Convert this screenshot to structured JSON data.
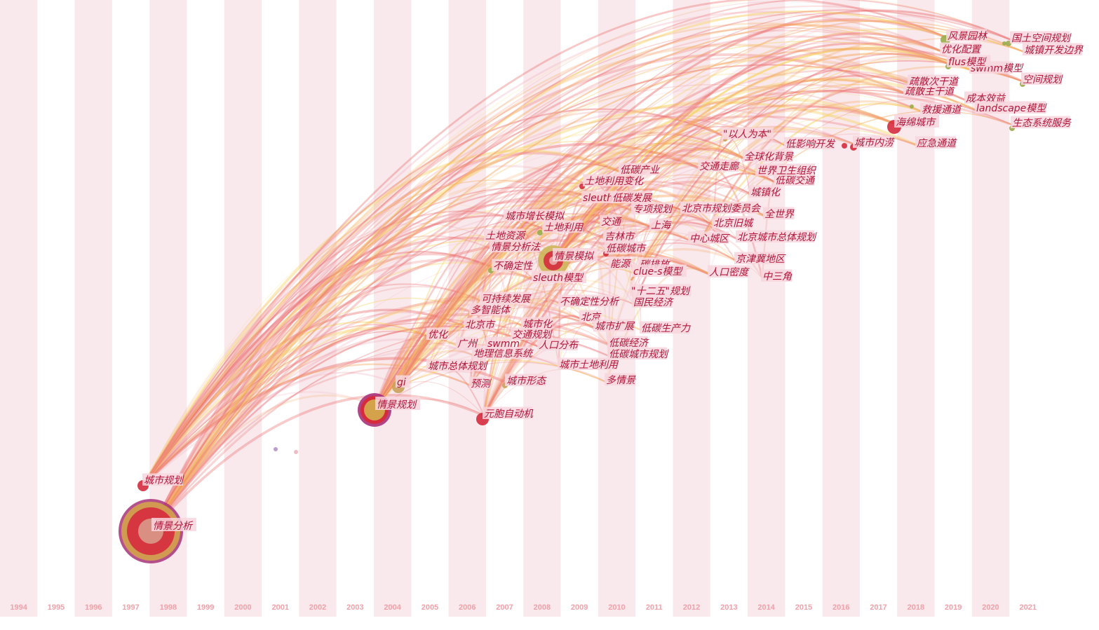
{
  "timeline": {
    "years": [
      "1994",
      "1995",
      "1996",
      "1997",
      "1998",
      "1999",
      "2000",
      "2001",
      "2002",
      "2003",
      "2004",
      "2005",
      "2006",
      "2007",
      "2008",
      "2009",
      "2010",
      "2011",
      "2012",
      "2013",
      "2014",
      "2015",
      "2016",
      "2017",
      "2018",
      "2019",
      "2020",
      "2021"
    ]
  },
  "colors": {
    "band": "#f7e1e6",
    "link_red": "#ec6d6d",
    "link_orange": "#f5a55a",
    "link_yellow": "#f7d15c",
    "link_pink": "#f1b3c0",
    "link_purple": "#b592c9",
    "label_bg": "#f8d6de",
    "label_text": "#b0163a",
    "node_red": "#d52b3d",
    "node_tan": "#c9a15a",
    "node_olive": "#9aac4c",
    "node_ring": "#a8327a"
  },
  "keywords": [
    {
      "id": "k1",
      "label": "情景分析",
      "year": 1998
    },
    {
      "id": "k2",
      "label": "城市规划",
      "year": 1998
    },
    {
      "id": "k3",
      "label": "情景规划",
      "year": 2004
    },
    {
      "id": "k4",
      "label": "gi",
      "year": 2004
    },
    {
      "id": "k5",
      "label": "元胞自动机",
      "year": 2007
    },
    {
      "id": "k6",
      "label": "情景模拟",
      "year": 2009
    },
    {
      "id": "k7",
      "label": "城市形态",
      "year": 2007
    },
    {
      "id": "k8",
      "label": "预测",
      "year": 2007
    },
    {
      "id": "k9",
      "label": "城市总体规划",
      "year": 2006
    },
    {
      "id": "k10",
      "label": "地理信息系统",
      "year": 2007
    },
    {
      "id": "k11",
      "label": "广州",
      "year": 2006
    },
    {
      "id": "k12",
      "label": "swmm",
      "year": 2007
    },
    {
      "id": "k13",
      "label": "人口分布",
      "year": 2008
    },
    {
      "id": "k14",
      "label": "交通规划",
      "year": 2007
    },
    {
      "id": "k15",
      "label": "城市化",
      "year": 2008
    },
    {
      "id": "k16",
      "label": "北京市",
      "year": 2006
    },
    {
      "id": "k17",
      "label": "优化",
      "year": 2005
    },
    {
      "id": "k18",
      "label": "多智能体",
      "year": 2006
    },
    {
      "id": "k19",
      "label": "可持续发展",
      "year": 2007
    },
    {
      "id": "k20",
      "label": "不确定性分析",
      "year": 2009
    },
    {
      "id": "k21",
      "label": "北京",
      "year": 2009
    },
    {
      "id": "k22",
      "label": "城市扩展",
      "year": 2010
    },
    {
      "id": "k23",
      "label": "低碳生产力",
      "year": 2011
    },
    {
      "id": "k24",
      "label": "低碳经济",
      "year": 2010
    },
    {
      "id": "k25",
      "label": "低碳城市规划",
      "year": 2011
    },
    {
      "id": "k26",
      "label": "城市土地利用",
      "year": 2009
    },
    {
      "id": "k27",
      "label": "多情景",
      "year": 2010
    },
    {
      "id": "k28",
      "label": "\"十二五\"规划",
      "year": 2011
    },
    {
      "id": "k29",
      "label": "国民经济",
      "year": 2011
    },
    {
      "id": "k30",
      "label": "sleuth模型",
      "year": 2008
    },
    {
      "id": "k31",
      "label": "不确定性",
      "year": 2007
    },
    {
      "id": "k32",
      "label": "情景分析法",
      "year": 2007
    },
    {
      "id": "k33",
      "label": "土地资源",
      "year": 2007
    },
    {
      "id": "k34",
      "label": "土地利用",
      "year": 2008
    },
    {
      "id": "k35",
      "label": "城市增长模拟",
      "year": 2008
    },
    {
      "id": "k36",
      "label": "交通",
      "year": 2009
    },
    {
      "id": "k37",
      "label": "吉林市",
      "year": 2010
    },
    {
      "id": "k38",
      "label": "低碳城市",
      "year": 2010
    },
    {
      "id": "k39",
      "label": "能源",
      "year": 2010
    },
    {
      "id": "k40",
      "label": "碳排放",
      "year": 2011
    },
    {
      "id": "k41",
      "label": "clue-s模型",
      "year": 2011
    },
    {
      "id": "k42",
      "label": "上海",
      "year": 2011
    },
    {
      "id": "k43",
      "label": "专项规划",
      "year": 2011
    },
    {
      "id": "k44",
      "label": "sleuth",
      "year": 2009
    },
    {
      "id": "k45",
      "label": "低碳发展",
      "year": 2010
    },
    {
      "id": "k46",
      "label": "土地利用变化",
      "year": 2009
    },
    {
      "id": "k47",
      "label": "低碳产业",
      "year": 2010
    },
    {
      "id": "k48",
      "label": "北京市规划委员会",
      "year": 2012
    },
    {
      "id": "k49",
      "label": "北京旧城",
      "year": 2013
    },
    {
      "id": "k50",
      "label": "中心城区",
      "year": 2012
    },
    {
      "id": "k51",
      "label": "北京城市总体规划",
      "year": 2013
    },
    {
      "id": "k52",
      "label": "人口密度",
      "year": 2013
    },
    {
      "id": "k53",
      "label": "京津冀地区",
      "year": 2014
    },
    {
      "id": "k54",
      "label": "中三角",
      "year": 2014
    },
    {
      "id": "k55",
      "label": "全世界",
      "year": 2014
    },
    {
      "id": "k56",
      "label": "城镇化",
      "year": 2014
    },
    {
      "id": "k57",
      "label": "低碳交通",
      "year": 2015
    },
    {
      "id": "k58",
      "label": "世界卫生组织",
      "year": 2014
    },
    {
      "id": "k59",
      "label": "交通走廊",
      "year": 2013
    },
    {
      "id": "k60",
      "label": "全球化背景",
      "year": 2014
    },
    {
      "id": "k61",
      "label": "\"以人为本\"",
      "year": 2013
    },
    {
      "id": "k62",
      "label": "低影响开发",
      "year": 2015
    },
    {
      "id": "k63",
      "label": "城市内涝",
      "year": 2016
    },
    {
      "id": "k64",
      "label": "海绵城市",
      "year": 2018
    },
    {
      "id": "k65",
      "label": "应急通道",
      "year": 2018
    },
    {
      "id": "k66",
      "label": "救援通道",
      "year": 2018
    },
    {
      "id": "k67",
      "label": "疏散主干道",
      "year": 2018
    },
    {
      "id": "k68",
      "label": "疏散次干道",
      "year": 2018
    },
    {
      "id": "k69",
      "label": "成本效益",
      "year": 2019
    },
    {
      "id": "k70",
      "label": "landscape模型",
      "year": 2020
    },
    {
      "id": "k71",
      "label": "生态系统服务",
      "year": 2021
    },
    {
      "id": "k72",
      "label": "空间规划",
      "year": 2021
    },
    {
      "id": "k73",
      "label": "swmm模型",
      "year": 2020
    },
    {
      "id": "k74",
      "label": "flus模型",
      "year": 2019
    },
    {
      "id": "k75",
      "label": "优化配置",
      "year": 2019
    },
    {
      "id": "k76",
      "label": "风景园林",
      "year": 2019
    },
    {
      "id": "k77",
      "label": "国土空间规划",
      "year": 2020
    },
    {
      "id": "k78",
      "label": "城镇开发边界",
      "year": 2021
    }
  ]
}
